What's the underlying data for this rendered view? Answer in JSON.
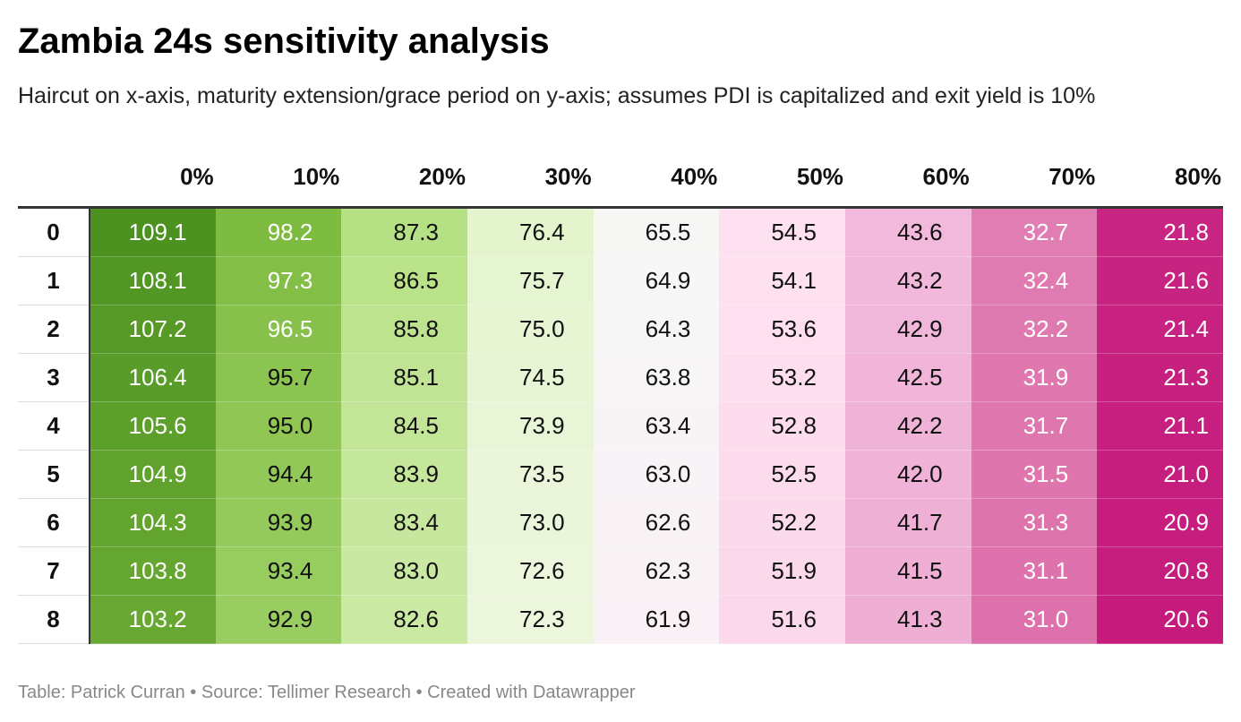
{
  "title": "Zambia 24s sensitivity analysis",
  "subtitle": "Haircut on x-axis, maturity extension/grace period on y-axis; assumes PDI is capitalized and exit yield is 10%",
  "footer": "Table: Patrick Curran • Source: Tellimer Research • Created with Datawrapper",
  "colors": {
    "green_dark": "#4d9221",
    "green_light": "#e6f5d0",
    "neutral": "#f7f7f7",
    "pink_light": "#fde0ef",
    "magenta_dark": "#c51b7d"
  },
  "chart_data": {
    "type": "heatmap",
    "title": "Zambia 24s sensitivity analysis",
    "subtitle": "Haircut on x-axis, maturity extension/grace period on y-axis; assumes PDI is capitalized and exit yield is 10%",
    "columns": [
      "0%",
      "10%",
      "20%",
      "30%",
      "40%",
      "50%",
      "60%",
      "70%",
      "80%"
    ],
    "rows": [
      "0",
      "1",
      "2",
      "3",
      "4",
      "5",
      "6",
      "7",
      "8"
    ],
    "values": [
      [
        "109.1",
        "98.2",
        "87.3",
        "76.4",
        "65.5",
        "54.5",
        "43.6",
        "32.7",
        "21.8"
      ],
      [
        "108.1",
        "97.3",
        "86.5",
        "75.7",
        "64.9",
        "54.1",
        "43.2",
        "32.4",
        "21.6"
      ],
      [
        "107.2",
        "96.5",
        "85.8",
        "75.0",
        "64.3",
        "53.6",
        "42.9",
        "32.2",
        "21.4"
      ],
      [
        "106.4",
        "95.7",
        "85.1",
        "74.5",
        "63.8",
        "53.2",
        "42.5",
        "31.9",
        "21.3"
      ],
      [
        "105.6",
        "95.0",
        "84.5",
        "73.9",
        "63.4",
        "52.8",
        "42.2",
        "31.7",
        "21.1"
      ],
      [
        "104.9",
        "94.4",
        "83.9",
        "73.5",
        "63.0",
        "52.5",
        "42.0",
        "31.5",
        "21.0"
      ],
      [
        "104.3",
        "93.9",
        "83.4",
        "73.0",
        "62.6",
        "52.2",
        "41.7",
        "31.3",
        "20.9"
      ],
      [
        "103.8",
        "93.4",
        "83.0",
        "72.6",
        "62.3",
        "51.9",
        "41.5",
        "31.1",
        "20.8"
      ],
      [
        "103.2",
        "92.9",
        "82.6",
        "72.3",
        "61.9",
        "51.6",
        "41.3",
        "31.0",
        "20.6"
      ]
    ],
    "color_scale": [
      "#4d9221",
      "#7fbc41",
      "#b8e186",
      "#e6f5d0",
      "#f7f7f7",
      "#fde0ef",
      "#f1b6da",
      "#de77ae",
      "#c51b7d"
    ],
    "value_range": [
      20.6,
      109.1
    ]
  }
}
